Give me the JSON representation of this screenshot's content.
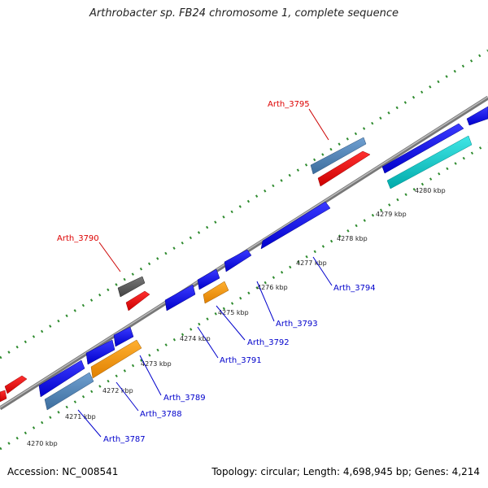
{
  "title": "Arthrobacter sp. FB24 chromosome 1, complete sequence",
  "footer": {
    "accession": "Accession: NC_008541",
    "summary": "Topology: circular; Length: 4,698,945 bp; Genes: 4,214"
  },
  "scale_labels": [
    "4270 kbp",
    "4271 kbp",
    "4272 kbp",
    "4273 kbp",
    "4274 kbp",
    "4275 kbp",
    "4276 kbp",
    "4277 kbp",
    "4278 kbp",
    "4279 kbp",
    "4280 kbp"
  ],
  "gene_labels_forward": [
    "Arth_3795",
    "Arth_3790"
  ],
  "gene_labels_reverse": [
    "Arth_3787",
    "Arth_3788",
    "Arth_3789",
    "Arth_3791",
    "Arth_3792",
    "Arth_3793",
    "Arth_3794"
  ],
  "colors": {
    "backbone": "#8a8a8a",
    "dots": "#2e8b2e",
    "cds_blue": "#0000ee",
    "cds_steel": "#4d82b8",
    "cds_red": "#ee0000",
    "cds_orange": "#ff9900",
    "cds_cyan": "#00cccc",
    "cds_gray": "#555555",
    "label_forward": "#dd0000",
    "label_reverse": "#0000cc"
  }
}
